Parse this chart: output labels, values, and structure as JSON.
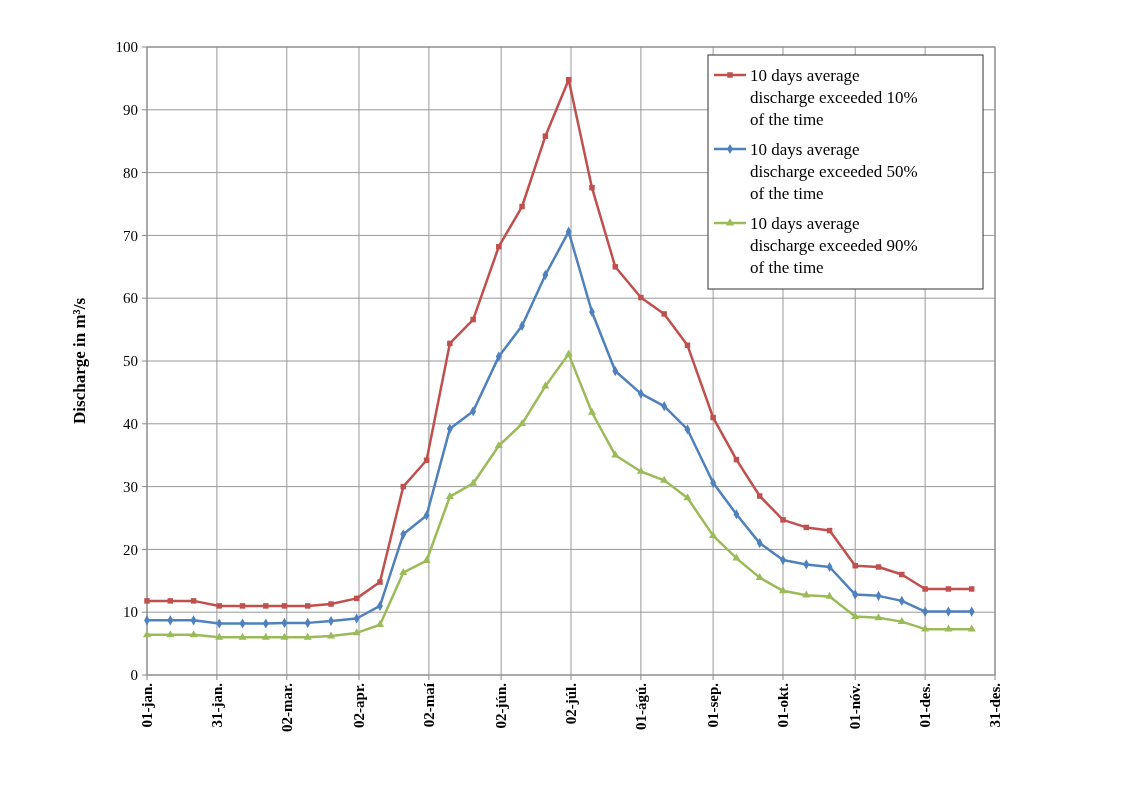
{
  "chart_data": {
    "type": "line",
    "ylabel": "Discharge in m³/s",
    "x": [
      "--01-01",
      "--01-11",
      "--01-21",
      "--02-01",
      "--02-11",
      "--02-21",
      "--03-01",
      "--03-11",
      "--03-21",
      "--04-01",
      "--04-11",
      "--04-21",
      "--05-01",
      "--05-11",
      "--05-21",
      "--06-01",
      "--06-11",
      "--06-21",
      "--07-01",
      "--07-11",
      "--07-21",
      "--08-01",
      "--08-11",
      "--08-21",
      "--09-01",
      "--09-11",
      "--09-21",
      "--10-01",
      "--10-11",
      "--10-21",
      "--11-01",
      "--11-11",
      "--11-21",
      "--12-01",
      "--12-11",
      "--12-21"
    ],
    "series": [
      {
        "name": "10 days average discharge exceeded 10% of the time",
        "color": "#c0504d",
        "marker": "square",
        "values": [
          11.8,
          11.8,
          11.8,
          11,
          11,
          11,
          11,
          11,
          11.3,
          12.2,
          14.8,
          30,
          34.2,
          52.8,
          56.6,
          68.2,
          74.6,
          85.8,
          94.8,
          77.6,
          65,
          60.1,
          57.5,
          52.5,
          41,
          34.3,
          28.5,
          24.7,
          23.5,
          23,
          17.4,
          17.2,
          16,
          13.7,
          13.7,
          13.7
        ]
      },
      {
        "name": "10 days average discharge exceeded 50% of the time",
        "color": "#4f81bd",
        "marker": "diamond",
        "values": [
          8.7,
          8.7,
          8.7,
          8.2,
          8.2,
          8.2,
          8.3,
          8.3,
          8.6,
          9,
          11,
          22.4,
          25.4,
          39.2,
          42,
          50.7,
          55.6,
          63.7,
          70.6,
          57.8,
          48.4,
          44.8,
          42.8,
          39.1,
          30.6,
          25.6,
          21,
          18.3,
          17.6,
          17.2,
          12.8,
          12.6,
          11.8,
          10.1,
          10.1,
          10.1
        ]
      },
      {
        "name": "10 days average discharge exceeded 90% of the time",
        "color": "#9bbb59",
        "marker": "triangle",
        "values": [
          6.4,
          6.4,
          6.4,
          6,
          6,
          6,
          6,
          6,
          6.2,
          6.7,
          8,
          16.3,
          18.2,
          28.4,
          30.5,
          36.5,
          40,
          46,
          51.1,
          41.8,
          35,
          32.4,
          31,
          28.2,
          22.2,
          18.6,
          15.5,
          13.4,
          12.7,
          12.5,
          9.3,
          9.1,
          8.5,
          7.3,
          7.3,
          7.3
        ]
      }
    ],
    "xlim": [
      "--01-01",
      "--12-31"
    ],
    "xticks": [
      {
        "value": "--01-01",
        "label": "01-jan."
      },
      {
        "value": "--01-31",
        "label": "31-jan."
      },
      {
        "value": "--03-02",
        "label": "02-mar."
      },
      {
        "value": "--04-02",
        "label": "02-apr."
      },
      {
        "value": "--05-02",
        "label": "02-maí"
      },
      {
        "value": "--06-02",
        "label": "02-jún."
      },
      {
        "value": "--07-02",
        "label": "02-júl."
      },
      {
        "value": "--08-01",
        "label": "01-ágú."
      },
      {
        "value": "--09-01",
        "label": "01-sep."
      },
      {
        "value": "--10-01",
        "label": "01-okt."
      },
      {
        "value": "--11-01",
        "label": "01-nóv."
      },
      {
        "value": "--12-01",
        "label": "01-des."
      },
      {
        "value": "--12-31",
        "label": "31-des."
      }
    ],
    "ylim": [
      0,
      100
    ],
    "yticks": [
      0,
      10,
      20,
      30,
      40,
      50,
      60,
      70,
      80,
      90,
      100
    ],
    "grid": true,
    "legend": "top right",
    "line_style": "solid"
  }
}
